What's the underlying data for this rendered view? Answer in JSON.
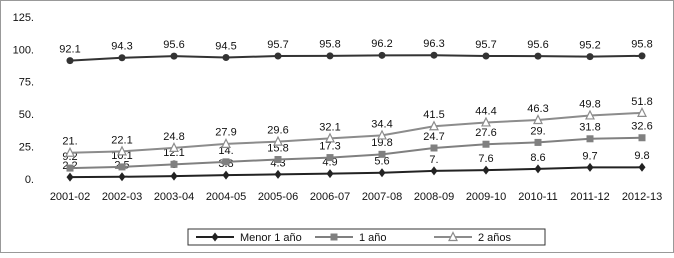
{
  "chart_data": {
    "type": "line",
    "categories": [
      "2001-02",
      "2002-03",
      "2003-04",
      "2004-05",
      "2005-06",
      "2006-07",
      "2007-08",
      "2008-09",
      "2009-10",
      "2010-11",
      "2011-12",
      "2012-13"
    ],
    "series": [
      {
        "color": "#333333",
        "marker": "circle",
        "values": [
          92.1,
          94.3,
          95.6,
          94.5,
          95.7,
          95.8,
          96.2,
          96.3,
          95.7,
          95.6,
          95.2,
          95.8
        ]
      },
      {
        "name": "Menor 1 año",
        "color": "#222222",
        "marker": "diamond",
        "values": [
          2.2,
          2.5,
          3,
          3.8,
          4.3,
          4.9,
          5.6,
          7,
          7.6,
          8.6,
          9.7,
          9.8
        ],
        "value_labels": [
          "2.2",
          "2.5",
          "3",
          "3.8",
          "4.3",
          "4.9",
          "5.6",
          "7.",
          "7.6",
          "8.6",
          "9.7",
          "9.8"
        ]
      },
      {
        "name": "1 año",
        "color": "#808080",
        "marker": "square",
        "values": [
          9.2,
          10.1,
          12.1,
          14,
          15.8,
          17.3,
          19.8,
          24.7,
          27.6,
          29,
          31.8,
          32.6
        ],
        "value_labels": [
          "9.2",
          "10.1",
          "12.1",
          "14.",
          "15.8",
          "17.3",
          "19.8",
          "24.7",
          "27.6",
          "29.",
          "31.8",
          "32.6"
        ]
      },
      {
        "name": "2 años",
        "color": "#8c8c8c",
        "marker": "triangle",
        "values": [
          21,
          22.1,
          24.8,
          27.9,
          29.6,
          32.1,
          34.4,
          41.5,
          44.4,
          46.3,
          49.8,
          51.8
        ],
        "value_labels": [
          "21.",
          "22.1",
          "24.8",
          "27.9",
          "29.6",
          "32.1",
          "34.4",
          "41.5",
          "44.4",
          "46.3",
          "49.8",
          "51.8"
        ]
      }
    ],
    "ylim": [
      0,
      125
    ],
    "yticks": [
      {
        "value": 0,
        "label": "0."
      },
      {
        "value": 25,
        "label": "25."
      },
      {
        "value": 50,
        "label": "50."
      },
      {
        "value": 75,
        "label": "75."
      },
      {
        "value": 100,
        "label": "100."
      },
      {
        "value": 125,
        "label": "125."
      }
    ],
    "grid": false,
    "legend": "bottom"
  }
}
